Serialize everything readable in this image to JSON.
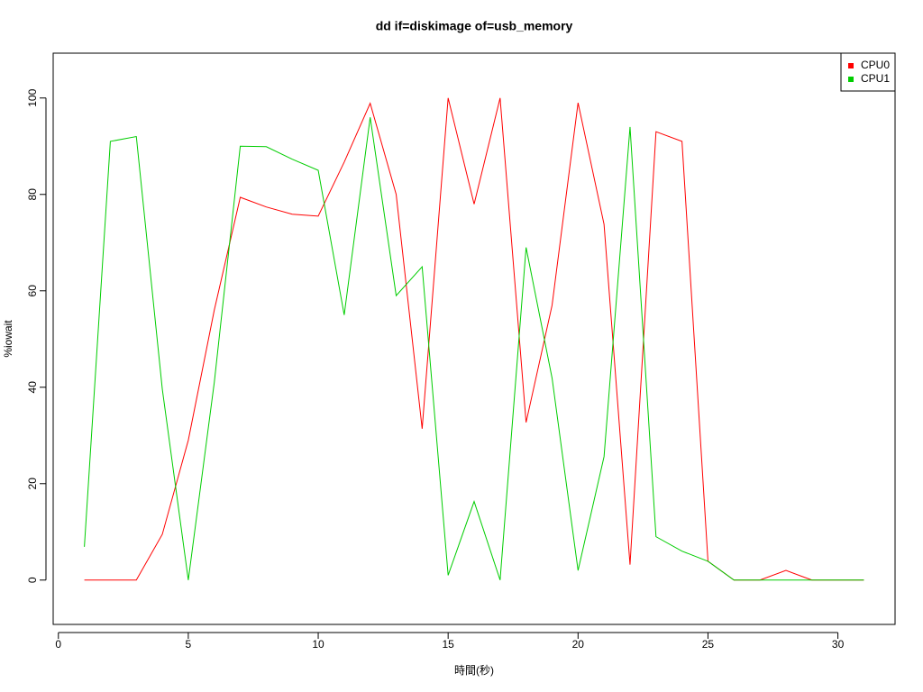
{
  "chart_data": {
    "type": "line",
    "title": "dd if=diskimage of=usb_memory",
    "x_label": "時間(秒)",
    "y_label": "%iowait",
    "x": [
      1,
      2,
      3,
      4,
      5,
      6,
      7,
      8,
      9,
      10,
      11,
      12,
      13,
      14,
      15,
      16,
      17,
      18,
      19,
      20,
      21,
      22,
      23,
      24,
      25,
      26,
      27,
      28,
      29,
      30,
      31
    ],
    "series": [
      {
        "name": "CPU0",
        "color": "#ff0000",
        "values": [
          0,
          0,
          0,
          9.5,
          29,
          56,
          79.4,
          77.4,
          75.9,
          75.5,
          86.7,
          98.9,
          80,
          31.4,
          100,
          78,
          100,
          32.7,
          57,
          99,
          73.8,
          3.2,
          93,
          91,
          3.9,
          0,
          0,
          2,
          0,
          0,
          0
        ]
      },
      {
        "name": "CPU1",
        "color": "#00cd00",
        "values": [
          6.9,
          91,
          92,
          39.6,
          0,
          41,
          90,
          89.9,
          87.3,
          85,
          55,
          96,
          59,
          65,
          1,
          16.3,
          0,
          69,
          41.9,
          2,
          25.6,
          94,
          9,
          6,
          3.9,
          0,
          0,
          0,
          0,
          0,
          0
        ]
      }
    ],
    "xlim": [
      -0.2,
      32.2
    ],
    "ylim": [
      -9.2,
      109.3
    ],
    "xticks": [
      0,
      5,
      10,
      15,
      20,
      25,
      30
    ],
    "yticks": [
      0,
      20,
      40,
      60,
      80,
      100
    ],
    "legend": "top-right"
  }
}
